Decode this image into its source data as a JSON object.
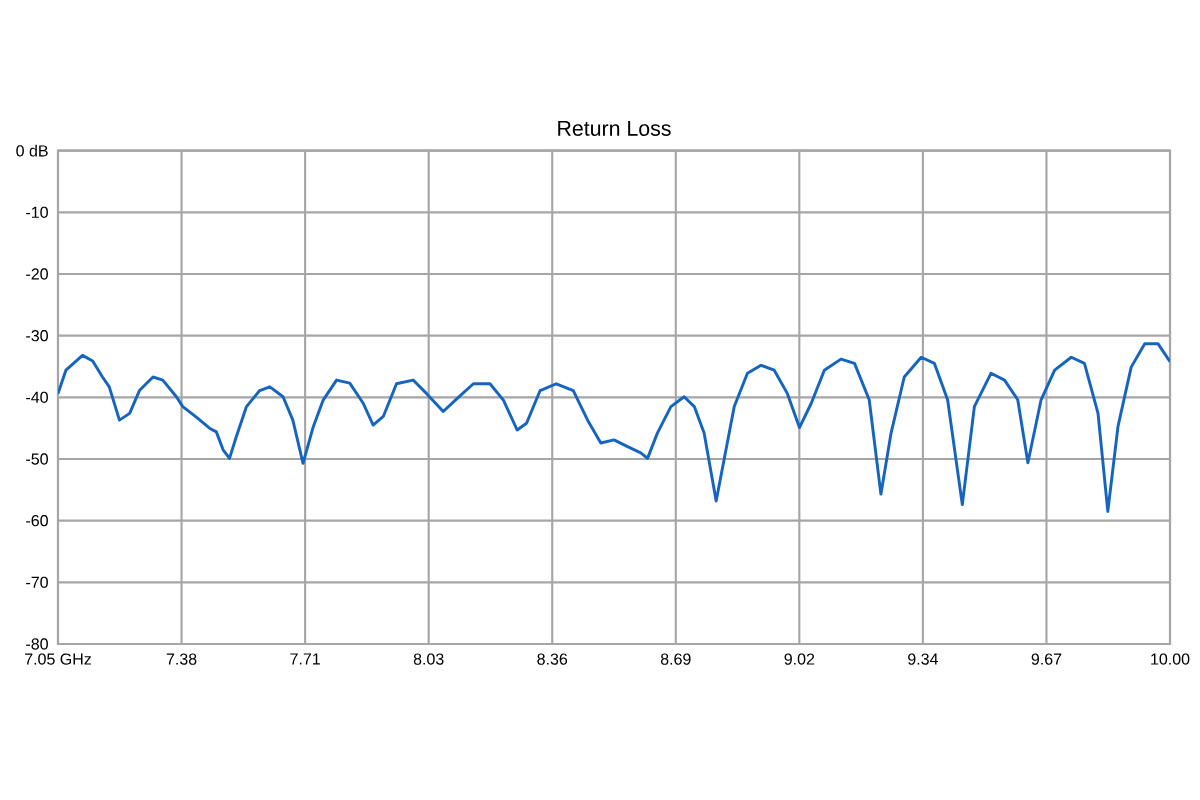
{
  "chart_data": {
    "type": "line",
    "title": "Return Loss",
    "color": "#1565c0",
    "x": [
      7.05,
      7.071,
      7.115,
      7.142,
      7.168,
      7.186,
      7.213,
      7.24,
      7.266,
      7.302,
      7.328,
      7.364,
      7.381,
      7.417,
      7.452,
      7.47,
      7.488,
      7.505,
      7.523,
      7.55,
      7.585,
      7.612,
      7.647,
      7.673,
      7.7,
      7.727,
      7.753,
      7.789,
      7.824,
      7.86,
      7.886,
      7.913,
      7.948,
      7.992,
      8.028,
      8.072,
      8.107,
      8.152,
      8.196,
      8.232,
      8.268,
      8.293,
      8.329,
      8.372,
      8.417,
      8.455,
      8.49,
      8.525,
      8.561,
      8.596,
      8.614,
      8.64,
      8.676,
      8.711,
      8.738,
      8.764,
      8.796,
      8.817,
      8.844,
      8.879,
      8.915,
      8.95,
      8.985,
      9.017,
      9.048,
      9.083,
      9.127,
      9.163,
      9.202,
      9.233,
      9.26,
      9.295,
      9.34,
      9.375,
      9.41,
      9.449,
      9.481,
      9.525,
      9.561,
      9.596,
      9.623,
      9.658,
      9.694,
      9.738,
      9.773,
      9.809,
      9.835,
      9.862,
      9.897,
      9.933,
      9.968,
      10.0
    ],
    "values": [
      -39.4,
      -35.6,
      -33.2,
      -34.1,
      -36.7,
      -38.3,
      -43.7,
      -42.6,
      -38.9,
      -36.7,
      -37.2,
      -39.9,
      -41.5,
      -43.2,
      -45.0,
      -45.6,
      -48.5,
      -49.9,
      -46.4,
      -41.5,
      -38.9,
      -38.3,
      -39.9,
      -43.7,
      -50.7,
      -44.8,
      -40.5,
      -37.2,
      -37.7,
      -41.0,
      -44.5,
      -43.1,
      -37.8,
      -37.2,
      -39.4,
      -42.3,
      -40.3,
      -37.8,
      -37.8,
      -40.5,
      -45.3,
      -44.2,
      -38.9,
      -37.8,
      -38.9,
      -43.7,
      -47.4,
      -46.9,
      -48.0,
      -49.0,
      -49.9,
      -45.8,
      -41.5,
      -39.9,
      -41.5,
      -45.8,
      -56.8,
      -50.1,
      -41.5,
      -36.1,
      -34.8,
      -35.6,
      -39.4,
      -44.9,
      -41.0,
      -35.6,
      -33.8,
      -34.5,
      -40.4,
      -55.7,
      -45.8,
      -36.7,
      -33.5,
      -34.5,
      -40.4,
      -57.4,
      -41.5,
      -36.1,
      -37.2,
      -40.4,
      -50.6,
      -40.4,
      -35.6,
      -33.5,
      -34.5,
      -42.6,
      -58.5,
      -44.7,
      -35.1,
      -31.3,
      -31.3,
      -34.2
    ],
    "xlim": [
      7.05,
      10.0
    ],
    "xticks": [
      {
        "value": 7.05,
        "label": "7.05 GHz"
      },
      {
        "value": 7.377778,
        "label": "7.38"
      },
      {
        "value": 7.705556,
        "label": "7.71"
      },
      {
        "value": 8.033333,
        "label": "8.03"
      },
      {
        "value": 8.361111,
        "label": "8.36"
      },
      {
        "value": 8.688889,
        "label": "8.69"
      },
      {
        "value": 9.016667,
        "label": "9.02"
      },
      {
        "value": 9.344444,
        "label": "9.34"
      },
      {
        "value": 9.672222,
        "label": "9.67"
      },
      {
        "value": 10.0,
        "label": "10.00"
      }
    ],
    "ylim": [
      -80,
      0
    ],
    "yticks": [
      {
        "value": 0,
        "label": "0 dB"
      },
      -10,
      -20,
      -30,
      -40,
      -50,
      -60,
      -70,
      -80
    ],
    "grid": true
  }
}
